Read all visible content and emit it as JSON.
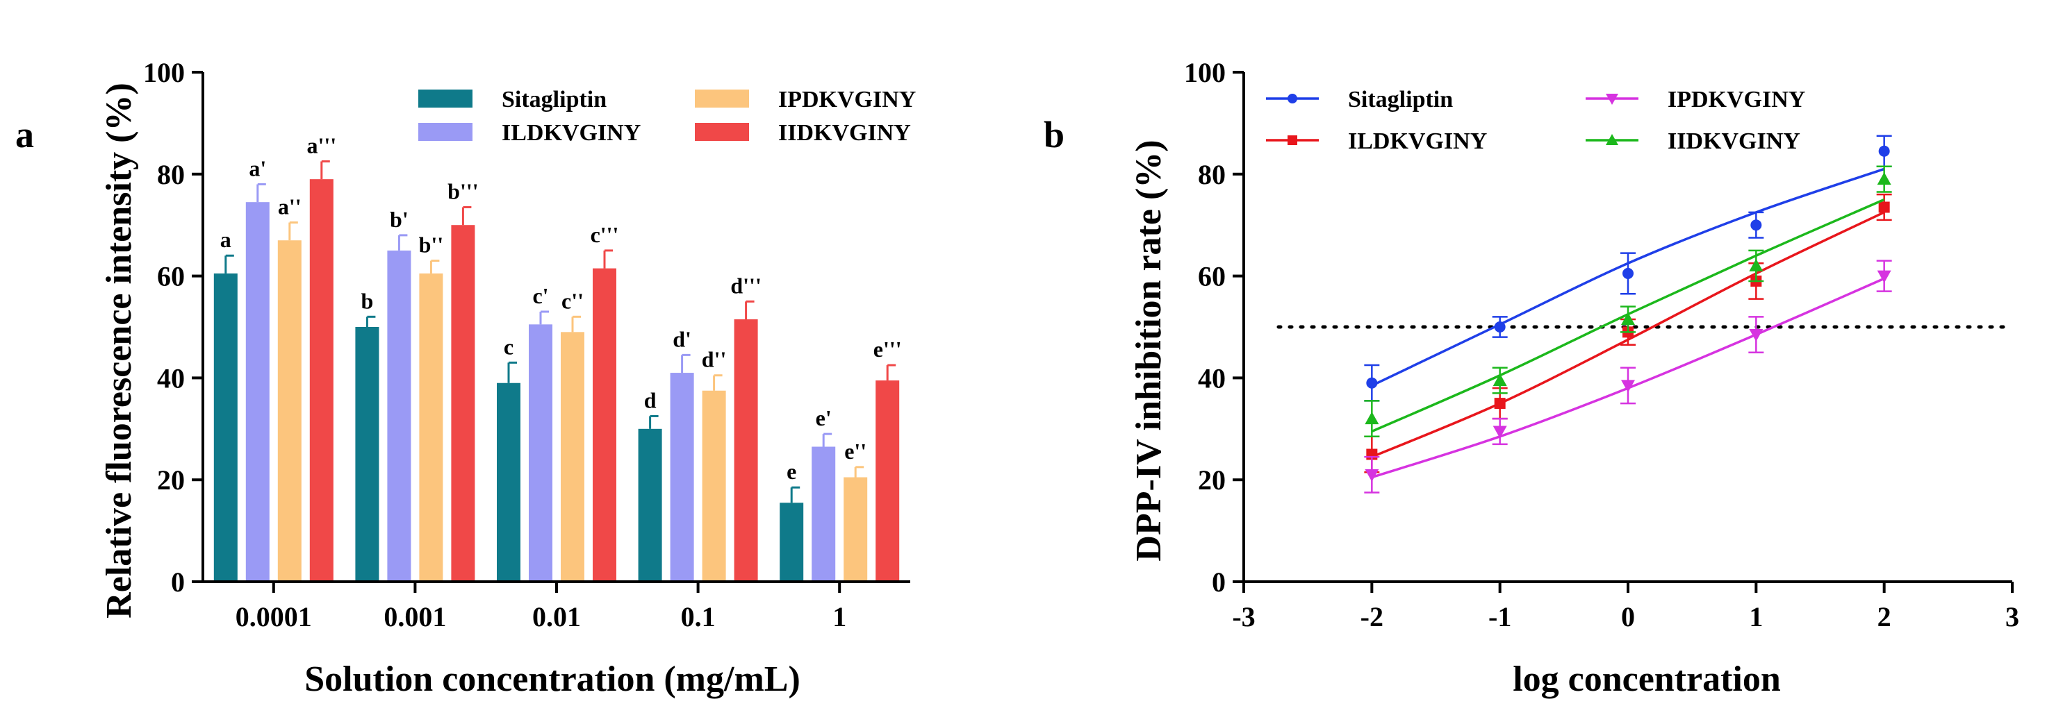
{
  "chart_data": [
    {
      "panel": "a",
      "type": "bar",
      "xlabel": "Solution concentration (mg/mL)",
      "ylabel": "Relative fluorescence intensity (%)",
      "ylim": [
        0,
        100
      ],
      "yticks": [
        0,
        20,
        40,
        60,
        80,
        100
      ],
      "categories": [
        "0.0001",
        "0.001",
        "0.01",
        "0.1",
        "1"
      ],
      "legend_position": "top",
      "series": [
        {
          "name": "Sitagliptin",
          "color": "#0f7a8a",
          "values": [
            60.5,
            50.0,
            39.0,
            30.0,
            15.5
          ],
          "errors": [
            3.5,
            2.0,
            4.0,
            2.5,
            3.0
          ],
          "labels": [
            "a",
            "b",
            "c",
            "d",
            "e"
          ]
        },
        {
          "name": "ILDKVGINY",
          "color": "#9a9af5",
          "values": [
            74.5,
            65.0,
            50.5,
            41.0,
            26.5
          ],
          "errors": [
            3.5,
            3.0,
            2.5,
            3.5,
            2.5
          ],
          "labels": [
            "a'",
            "b'",
            "c'",
            "d'",
            "e'"
          ]
        },
        {
          "name": "IPDKVGINY",
          "color": "#fcc57d",
          "values": [
            67.0,
            60.5,
            49.0,
            37.5,
            20.5
          ],
          "errors": [
            3.5,
            2.5,
            3.0,
            3.0,
            2.0
          ],
          "labels": [
            "a''",
            "b''",
            "c''",
            "d''",
            "e''"
          ]
        },
        {
          "name": "IIDKVGINY",
          "color": "#f04848",
          "values": [
            79.0,
            70.0,
            61.5,
            51.5,
            39.5
          ],
          "errors": [
            3.5,
            3.5,
            3.5,
            3.5,
            3.0
          ],
          "labels": [
            "a'''",
            "b'''",
            "c'''",
            "d'''",
            "e'''"
          ]
        }
      ]
    },
    {
      "panel": "b",
      "type": "scatter",
      "xlabel": "log concentration",
      "ylabel": "DPP-IV inhibition rate (%)",
      "xlim": [
        -3,
        3
      ],
      "ylim": [
        0,
        100
      ],
      "xticks": [
        -3,
        -2,
        -1,
        0,
        1,
        2,
        3
      ],
      "yticks": [
        0,
        20,
        40,
        60,
        80,
        100
      ],
      "reference_line_y": 50,
      "legend_position": "top",
      "x": [
        -2,
        -1,
        0,
        1,
        2
      ],
      "series": [
        {
          "name": "Sitagliptin",
          "color": "#1f3fe8",
          "marker": "circle",
          "values": [
            39.0,
            50.0,
            60.5,
            70.0,
            84.5
          ],
          "errors": [
            3.5,
            2.0,
            4.0,
            2.5,
            3.0
          ],
          "fit": [
            38.5,
            50.5,
            62.5,
            72.5,
            81.0
          ]
        },
        {
          "name": "ILDKVGINY",
          "color": "#e8161c",
          "marker": "square",
          "values": [
            25.0,
            35.0,
            49.0,
            59.0,
            73.5
          ],
          "errors": [
            3.5,
            3.0,
            2.5,
            3.5,
            2.5
          ],
          "fit": [
            24.5,
            35.0,
            47.5,
            60.5,
            72.5
          ]
        },
        {
          "name": "IPDKVGINY",
          "color": "#d633e0",
          "marker": "triangle-down",
          "values": [
            21.0,
            29.5,
            38.5,
            48.5,
            60.0
          ],
          "errors": [
            3.5,
            2.5,
            3.5,
            3.5,
            3.0
          ],
          "fit": [
            20.5,
            28.5,
            38.0,
            48.5,
            59.5
          ]
        },
        {
          "name": "IIDKVGINY",
          "color": "#1cb81c",
          "marker": "triangle-up",
          "values": [
            32.0,
            39.5,
            51.5,
            62.0,
            79.0
          ],
          "errors": [
            3.5,
            2.5,
            2.5,
            3.0,
            2.5
          ],
          "fit": [
            29.5,
            40.5,
            52.5,
            64.0,
            75.0
          ]
        }
      ]
    }
  ]
}
